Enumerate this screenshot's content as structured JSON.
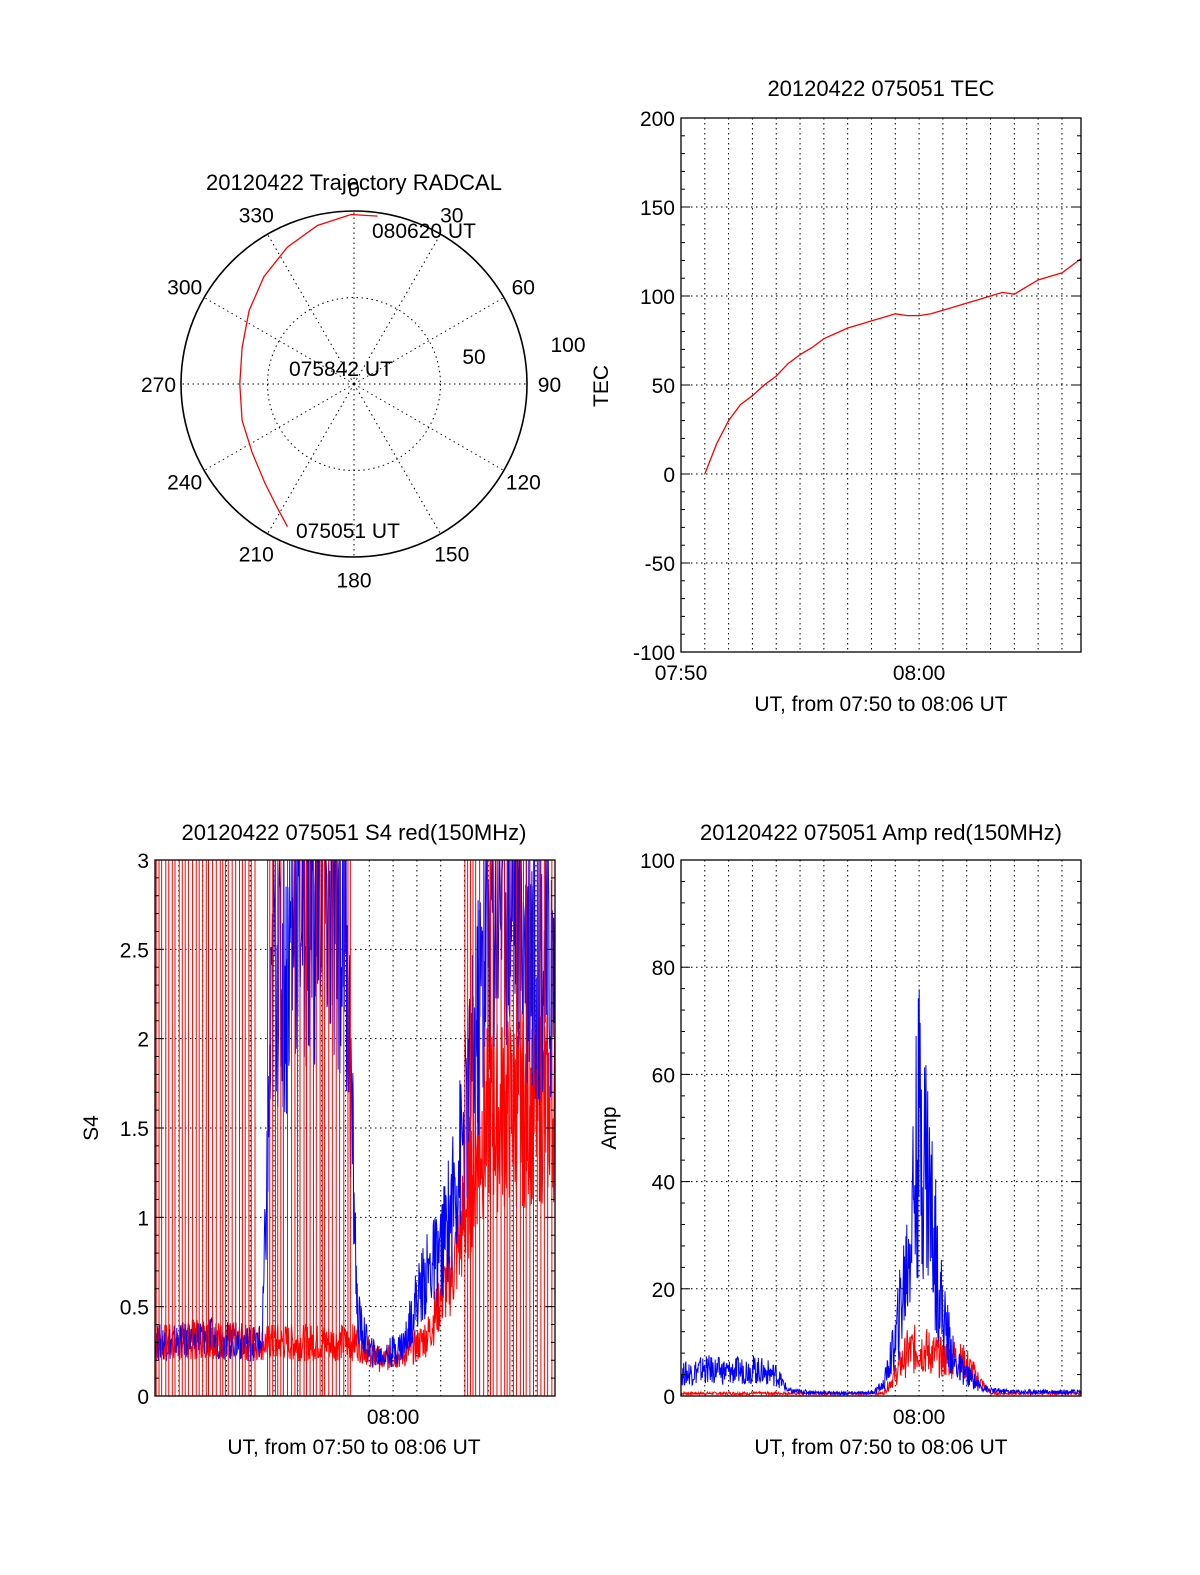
{
  "chart_data": [
    {
      "type": "polar",
      "title": "20120422 Trajectory RADCAL",
      "angle_labels": [
        "0",
        "30",
        "60",
        "90",
        "120",
        "150",
        "180",
        "210",
        "240",
        "270",
        "300",
        "330"
      ],
      "angle_values": [
        0,
        30,
        60,
        90,
        120,
        150,
        180,
        210,
        240,
        270,
        300,
        330
      ],
      "radial_labels": [
        "50",
        "100"
      ],
      "radial_values": [
        50,
        100
      ],
      "annotations": [
        "080620 UT",
        "075842 UT",
        "075051 UT"
      ],
      "series": [
        {
          "color": "#ff0000",
          "points": [
            {
              "az": 205,
              "r": 91
            },
            {
              "az": 212,
              "r": 84
            },
            {
              "az": 222,
              "r": 77
            },
            {
              "az": 236,
              "r": 71
            },
            {
              "az": 252,
              "r": 68
            },
            {
              "az": 270,
              "r": 66
            },
            {
              "az": 288,
              "r": 68
            },
            {
              "az": 305,
              "r": 74
            },
            {
              "az": 320,
              "r": 81
            },
            {
              "az": 334,
              "r": 88
            },
            {
              "az": 347,
              "r": 94
            },
            {
              "az": 359,
              "r": 98
            },
            {
              "az": 8,
              "r": 98
            }
          ]
        }
      ]
    },
    {
      "type": "line",
      "title": "20120422 075051 TEC",
      "xlabel": "UT, from 07:50 to 08:06 UT",
      "ylabel": "TEC",
      "xlim": [
        0,
        16.8
      ],
      "ylim": [
        -100,
        200
      ],
      "yticks": [
        -100,
        -50,
        0,
        50,
        100,
        150,
        200
      ],
      "yticklabels": [
        "-100",
        "-50",
        "0",
        "50",
        "100",
        "150",
        "200"
      ],
      "xticks": [
        0,
        10
      ],
      "xticklabels": [
        "07:50",
        "08:00"
      ],
      "grid": true,
      "series": [
        {
          "color": "#ff0000",
          "x": [
            1.0,
            1.5,
            2.0,
            2.5,
            3.0,
            3.5,
            4.0,
            4.5,
            5.0,
            5.5,
            6.0,
            6.5,
            7.0,
            7.5,
            8.0,
            8.5,
            9.0,
            9.5,
            10.0,
            10.5,
            11.0,
            11.5,
            12.0,
            12.5,
            13.0,
            13.5,
            14.0,
            14.5,
            15.0,
            15.5,
            16.0,
            16.5,
            16.8
          ],
          "y": [
            0,
            17,
            30,
            39,
            44,
            50,
            55,
            62,
            67,
            71,
            76,
            79,
            82,
            84,
            86,
            88,
            90,
            89,
            89,
            90,
            92,
            94,
            96,
            98,
            100,
            102,
            101,
            105,
            109,
            111,
            113,
            118,
            121
          ]
        }
      ]
    },
    {
      "type": "line",
      "title": "20120422 075051 S4 red(150MHz)",
      "xlabel": "UT, from 07:50 to 08:06 UT",
      "ylabel": "S4",
      "xlim": [
        0,
        16.8
      ],
      "ylim": [
        0,
        3
      ],
      "yticks": [
        0,
        0.5,
        1,
        1.5,
        2,
        2.5,
        3
      ],
      "yticklabels": [
        "0",
        "0.5",
        "1",
        "1.5",
        "2",
        "2.5",
        "3"
      ],
      "xticks": [
        10
      ],
      "xticklabels": [
        "08:00"
      ],
      "grid": true,
      "series": [
        {
          "color": "#ff0000",
          "x": [
            0.0,
            1.0,
            2.0,
            3.0,
            4.0,
            5.0,
            6.0,
            7.0,
            8.0,
            8.5,
            9.0,
            9.5,
            10.0,
            10.5,
            11.0,
            11.5,
            12.0,
            12.5,
            13.0,
            13.5,
            14.0,
            15.0,
            16.0,
            16.8
          ],
          "y": [
            0.3,
            0.3,
            0.32,
            0.31,
            0.3,
            0.3,
            0.3,
            0.3,
            0.3,
            0.3,
            0.25,
            0.2,
            0.22,
            0.24,
            0.28,
            0.35,
            0.55,
            0.7,
            1.0,
            1.4,
            1.55,
            1.6,
            1.62,
            1.65
          ]
        },
        {
          "color": "#0000ff",
          "x": [
            0.0,
            1.0,
            2.0,
            3.0,
            4.0,
            4.5,
            5.0,
            5.5,
            6.0,
            6.5,
            7.0,
            7.5,
            8.0,
            8.5,
            9.0,
            9.5,
            10.0,
            10.5,
            11.0,
            11.5,
            12.0,
            12.5,
            13.0,
            13.5,
            14.0,
            14.5,
            15.0,
            16.0,
            16.8
          ],
          "y": [
            0.3,
            0.3,
            0.33,
            0.31,
            0.3,
            0.3,
            2.5,
            2.3,
            2.9,
            2.7,
            3.0,
            2.6,
            2.8,
            0.45,
            0.25,
            0.22,
            0.25,
            0.3,
            0.55,
            0.7,
            0.8,
            1.1,
            1.5,
            2.0,
            2.7,
            3.0,
            2.9,
            2.5,
            2.4
          ]
        }
      ]
    },
    {
      "type": "line",
      "title": "20120422 075051 Amp red(150MHz)",
      "xlabel": "UT, from 07:50 to 08:06 UT",
      "ylabel": "Amp",
      "xlim": [
        0,
        16.8
      ],
      "ylim": [
        0,
        100
      ],
      "yticks": [
        0,
        20,
        40,
        60,
        80,
        100
      ],
      "yticklabels": [
        "0",
        "20",
        "40",
        "60",
        "80",
        "100"
      ],
      "xticks": [
        10
      ],
      "xticklabels": [
        "08:00"
      ],
      "grid": true,
      "series": [
        {
          "color": "#ff0000",
          "x": [
            0.0,
            4.5,
            8.5,
            9.0,
            9.5,
            10.0,
            10.5,
            11.0,
            11.5,
            12.0,
            12.5,
            13.0,
            16.8
          ],
          "y": [
            0.5,
            0.5,
            0.5,
            4,
            8,
            9,
            8,
            7,
            7,
            6,
            3,
            0.5,
            0.5
          ]
        },
        {
          "color": "#0000ff",
          "x": [
            0.0,
            1.0,
            2.0,
            3.0,
            4.0,
            4.5,
            5.0,
            6.0,
            7.0,
            8.0,
            8.5,
            9.0,
            9.5,
            9.8,
            10.0,
            10.3,
            10.6,
            11.0,
            11.5,
            12.0,
            12.5,
            13.0,
            14.0,
            15.0,
            16.8
          ],
          "y": [
            4,
            5,
            4.5,
            5,
            4,
            1,
            0.8,
            0.6,
            0.5,
            0.6,
            2,
            10,
            25,
            40,
            50,
            45,
            30,
            15,
            6,
            4,
            2,
            1,
            0.8,
            0.8,
            0.8
          ]
        }
      ]
    }
  ]
}
